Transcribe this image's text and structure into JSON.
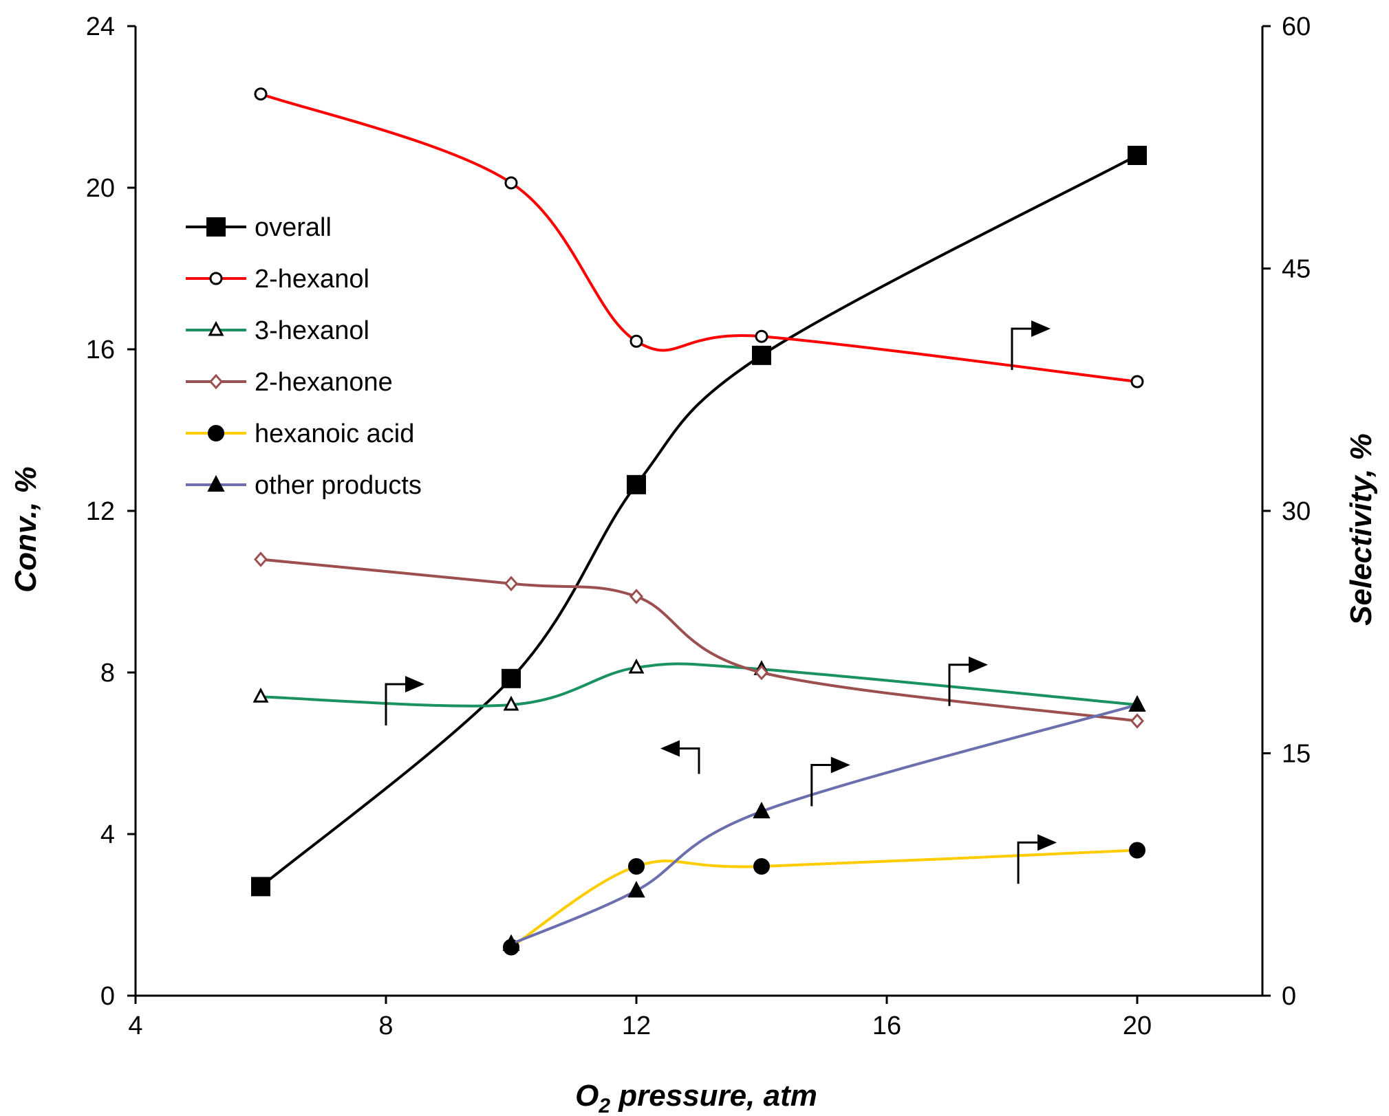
{
  "chart_data": {
    "type": "line",
    "title": "",
    "xlabel_main": "O",
    "xlabel_sub": "2",
    "xlabel_rest": " pressure, atm",
    "ylabel_left": "Conv., %",
    "ylabel_right": "Selectivity, %",
    "xlim": [
      4,
      22
    ],
    "ylim_left": [
      0,
      24
    ],
    "ylim_right": [
      0,
      60
    ],
    "xticks": [
      4,
      8,
      12,
      16,
      20
    ],
    "yticks_left": [
      0,
      4,
      8,
      12,
      16,
      20,
      24
    ],
    "yticks_right": [
      0,
      15,
      30,
      45,
      60
    ],
    "legend_position": "upper-left",
    "series": [
      {
        "name": "overall",
        "axis": "left",
        "color": "#000000",
        "marker": "square-filled",
        "x": [
          6,
          10,
          12,
          14,
          20
        ],
        "y": [
          2.7,
          7.85,
          12.65,
          15.85,
          20.8
        ]
      },
      {
        "name": "2-hexanol",
        "axis": "right",
        "color": "#ff0000",
        "marker": "circle-open",
        "x": [
          6,
          10,
          12,
          14,
          20
        ],
        "y": [
          55.8,
          50.3,
          40.5,
          40.8,
          38.0
        ]
      },
      {
        "name": "3-hexanol",
        "axis": "right",
        "color": "#1a9160",
        "marker": "triangle-open",
        "x": [
          6,
          10,
          12,
          14,
          20
        ],
        "y": [
          18.5,
          18.0,
          20.3,
          20.2,
          18.0
        ]
      },
      {
        "name": "2-hexanone",
        "axis": "right",
        "color": "#9b4f4f",
        "marker": "diamond-open",
        "x": [
          6,
          10,
          12,
          14,
          20
        ],
        "y": [
          27.0,
          25.5,
          24.7,
          20.0,
          17.0
        ]
      },
      {
        "name": "hexanoic acid",
        "axis": "right",
        "color": "#ffcc00",
        "marker": "circle-filled",
        "x": [
          10,
          12,
          14,
          20
        ],
        "y": [
          3.0,
          8.0,
          8.0,
          9.0
        ]
      },
      {
        "name": "other products",
        "axis": "right",
        "color": "#6b6fad",
        "marker": "triangle-filled",
        "x": [
          10,
          12,
          14,
          20
        ],
        "y": [
          3.2,
          6.5,
          11.4,
          18.0
        ]
      }
    ],
    "annotations": [
      {
        "type": "arrow",
        "direction": "left",
        "meaning": "left axis",
        "target": "overall",
        "at": [
          13,
          15.0
        ]
      },
      {
        "type": "arrow",
        "direction": "right",
        "meaning": "right axis",
        "target": "2-hexanol",
        "at": [
          18,
          40.0
        ]
      },
      {
        "type": "arrow",
        "direction": "right",
        "meaning": "right axis",
        "target": "3-hexanol",
        "at": [
          8,
          18.0
        ]
      },
      {
        "type": "arrow",
        "direction": "right",
        "meaning": "right axis",
        "target": "2-hexanone",
        "at": [
          17,
          19.2
        ]
      },
      {
        "type": "arrow",
        "direction": "right",
        "meaning": "right axis",
        "target": "other products",
        "at": [
          14.8,
          13.0
        ]
      },
      {
        "type": "arrow",
        "direction": "right",
        "meaning": "right axis",
        "target": "hexanoic acid",
        "at": [
          18.1,
          8.2
        ]
      }
    ]
  }
}
